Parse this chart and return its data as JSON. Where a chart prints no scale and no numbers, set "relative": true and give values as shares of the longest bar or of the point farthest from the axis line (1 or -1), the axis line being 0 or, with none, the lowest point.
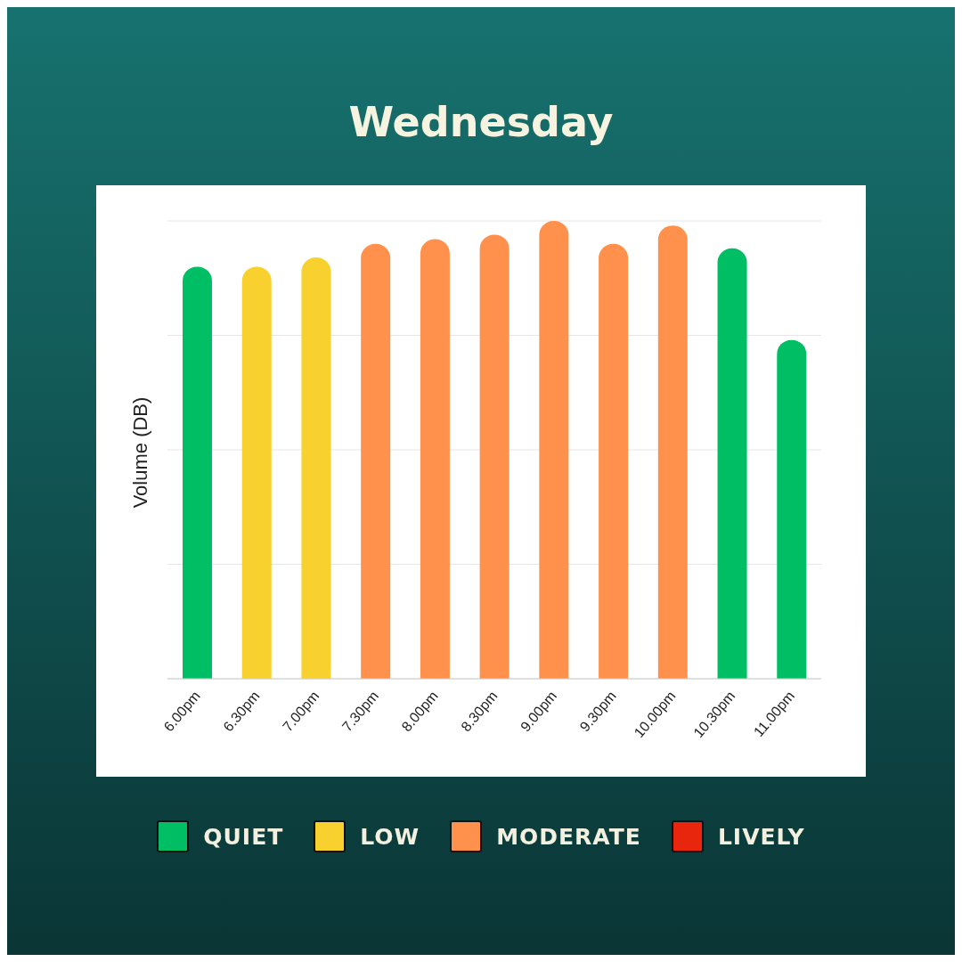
{
  "chart_data": {
    "type": "bar",
    "title": "Wednesday",
    "ylabel": "Volume (DB)",
    "relative": true,
    "stacked": true,
    "grid": "y",
    "legend": "bottom",
    "categories": [
      "6.00pm",
      "6.30pm",
      "7.00pm",
      "7.30pm",
      "8.00pm",
      "8.30pm",
      "9.00pm",
      "9.30pm",
      "10.00pm",
      "10.30pm",
      "11.00pm"
    ],
    "series": [
      {
        "name": "QUIET",
        "color": "#00be63",
        "values": [
          0.9,
          null,
          null,
          null,
          null,
          null,
          null,
          null,
          null,
          0.94,
          0.74
        ]
      },
      {
        "name": "LOW",
        "color": "#f9d12e",
        "values": [
          null,
          0.9,
          0.92,
          null,
          null,
          null,
          null,
          null,
          null,
          null,
          null
        ]
      },
      {
        "name": "MODERATE",
        "color": "#ff914d",
        "values": [
          null,
          null,
          null,
          0.95,
          0.96,
          0.97,
          1,
          0.95,
          0.99,
          null,
          null
        ]
      },
      {
        "name": "LIVELY",
        "color": "#e8260e",
        "values": [
          null,
          null,
          null,
          null,
          null,
          null,
          null,
          null,
          null,
          null,
          null
        ]
      }
    ]
  }
}
